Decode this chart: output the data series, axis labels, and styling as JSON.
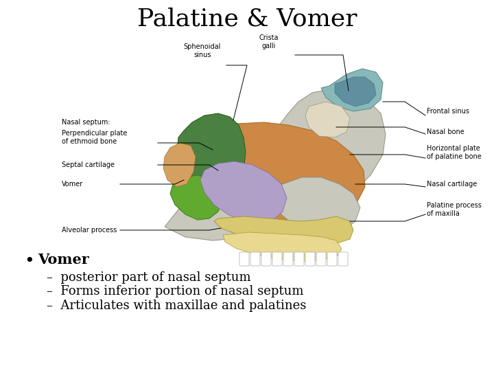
{
  "title": "Palatine & Vomer",
  "title_fontsize": 26,
  "title_font": "serif",
  "background_color": "#ffffff",
  "bullet_header": "Vomer",
  "bullet_header_fontsize": 15,
  "bullet_header_bold": true,
  "sub_bullets": [
    "posterior part of nasal septum",
    "Forms inferior portion of nasal septum",
    "Articulates with maxillae and palatines"
  ],
  "sub_bullet_fontsize": 13,
  "text_color": "#000000",
  "label_fontsize": 7.0,
  "colors": {
    "skull_gray": "#c8c8bc",
    "orange_brown": "#cc8844",
    "teal": "#88b8b8",
    "teal_dark": "#6090a0",
    "green_dark": "#4a8040",
    "green_bright": "#60aa30",
    "lavender": "#b0a0c8",
    "yellow_tan": "#d8c870",
    "yellow_light": "#e8d890",
    "orange_tan": "#d4a060",
    "bone": "#e0d8c0",
    "white": "#ffffff"
  }
}
